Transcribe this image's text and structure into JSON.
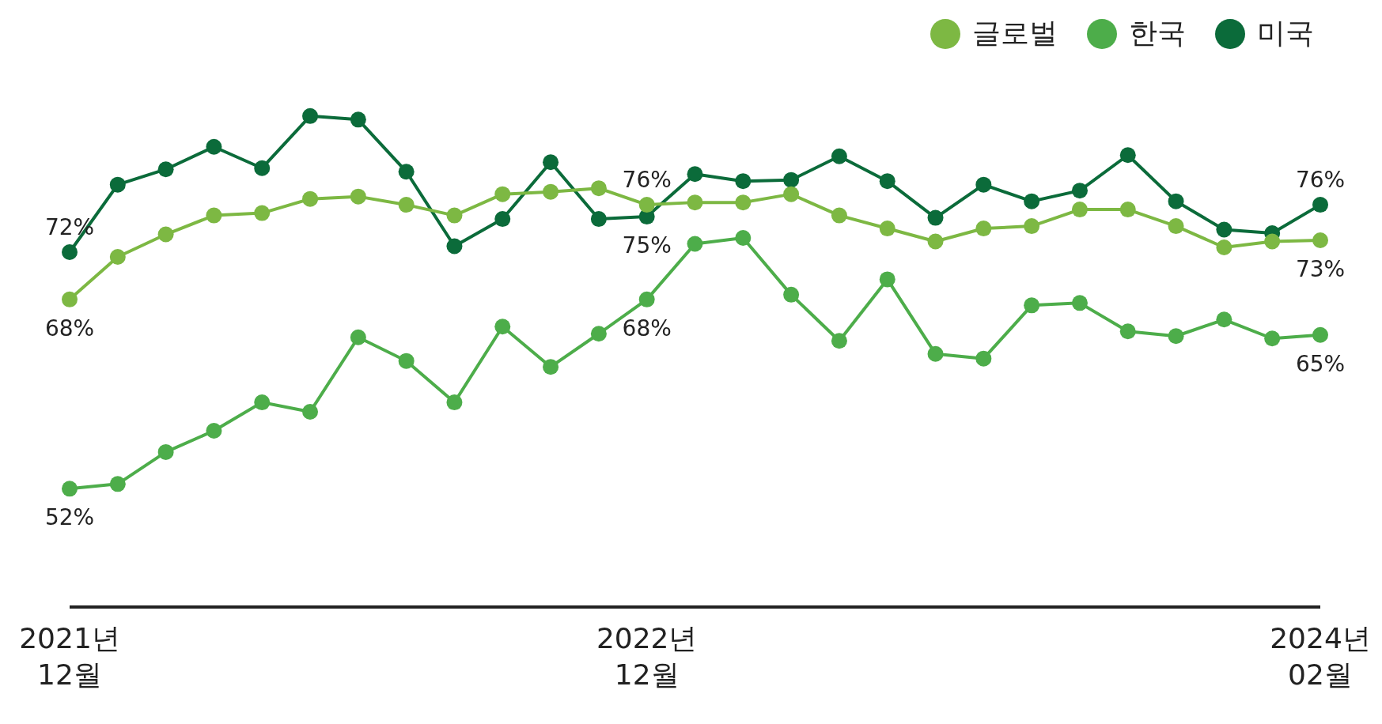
{
  "chart_data": {
    "type": "line",
    "categories": [
      "2021년 12월",
      null,
      null,
      null,
      null,
      null,
      null,
      null,
      null,
      null,
      null,
      null,
      "2022년 12월",
      null,
      null,
      null,
      null,
      null,
      null,
      null,
      null,
      null,
      null,
      null,
      null,
      null,
      "2024년 02월"
    ],
    "series": [
      {
        "name": "글로벌",
        "color": "#7db843",
        "values": [
          68,
          71.6,
          73.5,
          75.1,
          75.3,
          76.5,
          76.7,
          76,
          75.1,
          76.9,
          77.1,
          77.4,
          76,
          76.2,
          76.2,
          76.9,
          75.1,
          74,
          72.9,
          74,
          74.2,
          75.6,
          75.6,
          74.2,
          72.4,
          72.9,
          73
        ],
        "value_labels": [
          "68%",
          null,
          null,
          null,
          null,
          null,
          null,
          null,
          null,
          null,
          null,
          null,
          "76%",
          null,
          null,
          null,
          null,
          null,
          null,
          null,
          null,
          null,
          null,
          null,
          null,
          null,
          "73%"
        ]
      },
      {
        "name": "한국",
        "color": "#4dad4a",
        "values": [
          52,
          52.4,
          55.1,
          56.9,
          59.3,
          58.5,
          64.8,
          62.8,
          59.3,
          65.7,
          62.3,
          65.1,
          68,
          72.7,
          73.2,
          68.4,
          64.5,
          69.7,
          63.4,
          63,
          67.5,
          67.7,
          65.3,
          64.9,
          66.3,
          64.7,
          65
        ],
        "value_labels": [
          "52%",
          null,
          null,
          null,
          null,
          null,
          null,
          null,
          null,
          null,
          null,
          null,
          "68%",
          null,
          null,
          null,
          null,
          null,
          null,
          null,
          null,
          null,
          null,
          null,
          null,
          null,
          "65%"
        ]
      },
      {
        "name": "미국",
        "color": "#0b6b3a",
        "values": [
          72,
          77.7,
          79,
          80.9,
          79.1,
          83.5,
          83.2,
          78.8,
          72.5,
          74.8,
          79.6,
          74.8,
          75,
          78.6,
          78,
          78.1,
          80.1,
          78,
          74.9,
          77.7,
          76.3,
          77.2,
          80.2,
          76.3,
          73.9,
          73.6,
          76
        ],
        "value_labels": [
          "72%",
          null,
          null,
          null,
          null,
          null,
          null,
          null,
          null,
          null,
          null,
          null,
          "75%",
          null,
          null,
          null,
          null,
          null,
          null,
          null,
          null,
          null,
          null,
          null,
          null,
          null,
          "76%"
        ]
      }
    ],
    "legend": "top right",
    "marker": "circle",
    "line_style": "solid",
    "grid": false
  }
}
